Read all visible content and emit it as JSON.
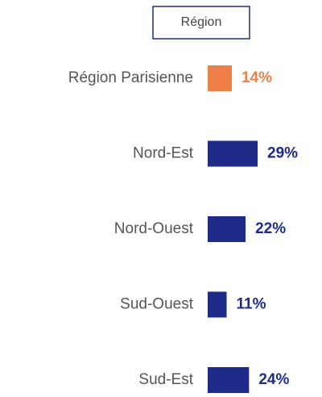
{
  "chart_data": {
    "type": "bar",
    "orientation": "horizontal",
    "title": "Région",
    "categories": [
      "Région Parisienne",
      "Nord-Est",
      "Nord-Ouest",
      "Sud-Ouest",
      "Sud-Est"
    ],
    "values": [
      14,
      29,
      22,
      11,
      24
    ],
    "value_labels": [
      "14%",
      "29%",
      "22%",
      "11%",
      "24%"
    ],
    "colors": [
      "#f07f47",
      "#1f2b88",
      "#1f2b88",
      "#1f2b88",
      "#1f2b88"
    ]
  }
}
